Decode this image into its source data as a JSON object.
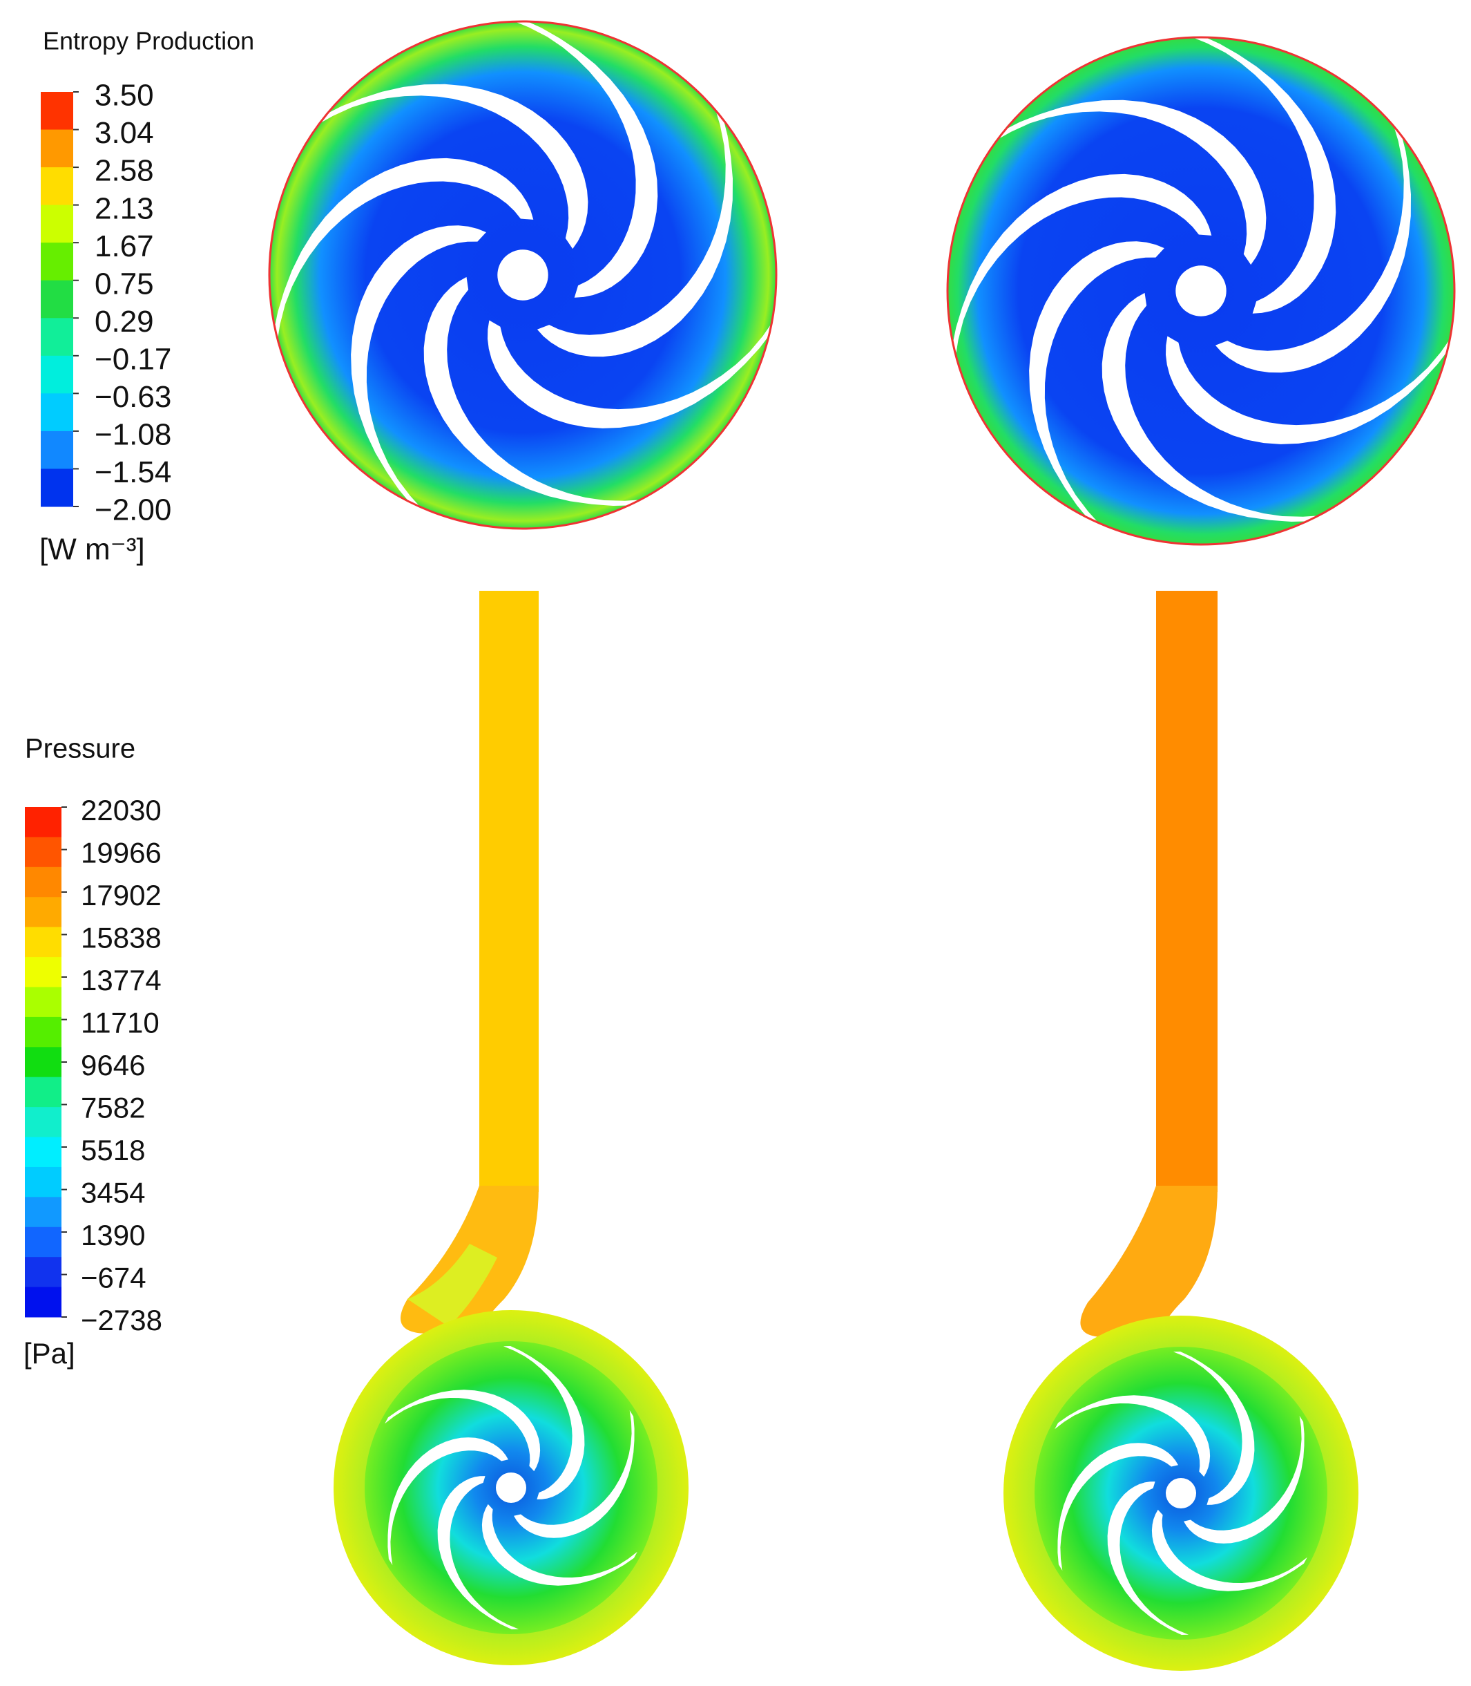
{
  "legends": [
    {
      "title": "Entropy Production",
      "labels": [
        "3.50",
        "3.04",
        "2.58",
        "2.13",
        "1.67",
        "0.75",
        "0.29",
        "−0.17",
        "−0.63",
        "−1.08",
        "−1.54",
        "−2.00"
      ],
      "unit": "[W m⁻³]"
    },
    {
      "title": "Pressure",
      "labels": [
        "22030",
        "19966",
        "17902",
        "15838",
        "13774",
        "11710",
        "9646",
        "7582",
        "5518",
        "3454",
        "1390",
        "−674",
        "−2738"
      ],
      "unit": "[Pa]"
    }
  ]
}
